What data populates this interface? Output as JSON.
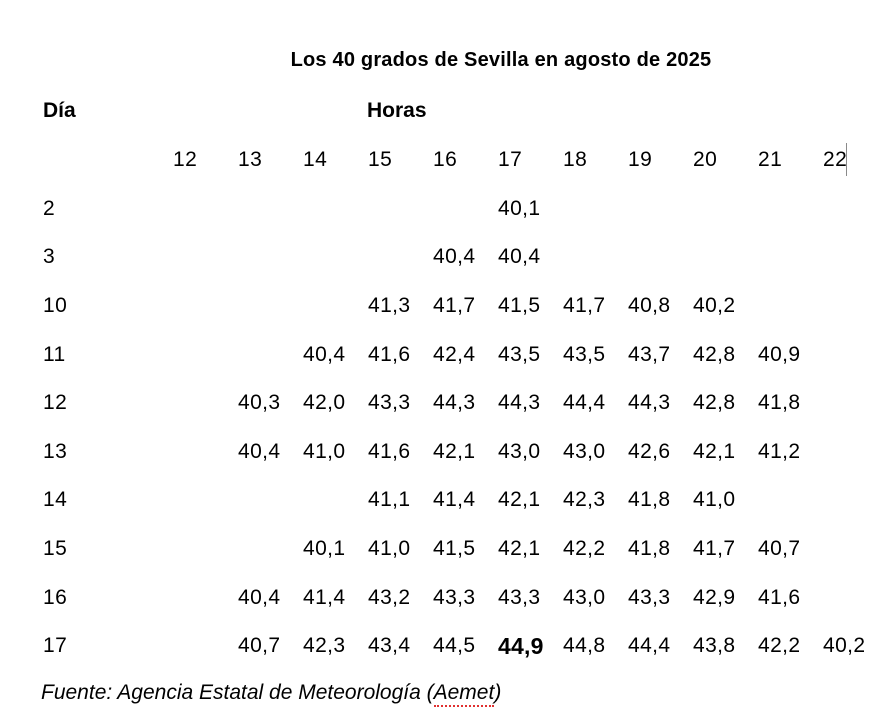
{
  "title": "Los 40 grados de Sevilla en agosto de 2025",
  "table": {
    "day_label": "Día",
    "hours_label": "Horas",
    "hours": [
      "12",
      "13",
      "14",
      "15",
      "16",
      "17",
      "18",
      "19",
      "20",
      "21",
      "22"
    ],
    "rows": [
      {
        "day": "2",
        "values": [
          "",
          "",
          "",
          "",
          "",
          "40,1",
          "",
          "",
          "",
          "",
          ""
        ]
      },
      {
        "day": "3",
        "values": [
          "",
          "",
          "",
          "",
          "40,4",
          "40,4",
          "",
          "",
          "",
          "",
          ""
        ]
      },
      {
        "day": "10",
        "values": [
          "",
          "",
          "",
          "41,3",
          "41,7",
          "41,5",
          "41,7",
          "40,8",
          "40,2",
          "",
          ""
        ]
      },
      {
        "day": "11",
        "values": [
          "",
          "",
          "40,4",
          "41,6",
          "42,4",
          "43,5",
          "43,5",
          "43,7",
          "42,8",
          "40,9",
          ""
        ]
      },
      {
        "day": "12",
        "values": [
          "",
          "40,3",
          "42,0",
          "43,3",
          "44,3",
          "44,3",
          "44,4",
          "44,3",
          "42,8",
          "41,8",
          ""
        ]
      },
      {
        "day": "13",
        "values": [
          "",
          "40,4",
          "41,0",
          "41,6",
          "42,1",
          "43,0",
          "43,0",
          "42,6",
          "42,1",
          "41,2",
          ""
        ]
      },
      {
        "day": "14",
        "values": [
          "",
          "",
          "",
          "41,1",
          "41,4",
          "42,1",
          "42,3",
          "41,8",
          "41,0",
          "",
          ""
        ]
      },
      {
        "day": "15",
        "values": [
          "",
          "",
          "40,1",
          "41,0",
          "41,5",
          "42,1",
          "42,2",
          "41,8",
          "41,7",
          "40,7",
          ""
        ]
      },
      {
        "day": "16",
        "values": [
          "",
          "40,4",
          "41,4",
          "43,2",
          "43,3",
          "43,3",
          "43,0",
          "43,3",
          "42,9",
          "41,6",
          ""
        ]
      },
      {
        "day": "17",
        "values": [
          "",
          "40,7",
          "42,3",
          "43,4",
          "44,5",
          "44,9",
          "44,8",
          "44,4",
          "43,8",
          "42,2",
          "40,2"
        ],
        "bold_index": 5
      }
    ]
  },
  "source": {
    "prefix": "Fuente: Agencia Estatal de Meteorología (",
    "misspelled_word": "Aemet",
    "suffix": ")"
  },
  "colors": {
    "text": "#000000",
    "background": "#ffffff",
    "spellcheck_underline": "#e03030"
  },
  "chart_data": {
    "type": "table",
    "title": "Los 40 grados de Sevilla en agosto de 2025",
    "row_header": "Día",
    "column_group_header": "Horas",
    "columns": [
      12,
      13,
      14,
      15,
      16,
      17,
      18,
      19,
      20,
      21,
      22
    ],
    "rows": [
      {
        "day": 2,
        "values": [
          null,
          null,
          null,
          null,
          null,
          40.1,
          null,
          null,
          null,
          null,
          null
        ]
      },
      {
        "day": 3,
        "values": [
          null,
          null,
          null,
          null,
          40.4,
          40.4,
          null,
          null,
          null,
          null,
          null
        ]
      },
      {
        "day": 10,
        "values": [
          null,
          null,
          null,
          41.3,
          41.7,
          41.5,
          41.7,
          40.8,
          40.2,
          null,
          null
        ]
      },
      {
        "day": 11,
        "values": [
          null,
          null,
          40.4,
          41.6,
          42.4,
          43.5,
          43.5,
          43.7,
          42.8,
          40.9,
          null
        ]
      },
      {
        "day": 12,
        "values": [
          null,
          40.3,
          42.0,
          43.3,
          44.3,
          44.3,
          44.4,
          44.3,
          42.8,
          41.8,
          null
        ]
      },
      {
        "day": 13,
        "values": [
          null,
          40.4,
          41.0,
          41.6,
          42.1,
          43.0,
          43.0,
          42.6,
          42.1,
          41.2,
          null
        ]
      },
      {
        "day": 14,
        "values": [
          null,
          null,
          null,
          41.1,
          41.4,
          42.1,
          42.3,
          41.8,
          41.0,
          null,
          null
        ]
      },
      {
        "day": 15,
        "values": [
          null,
          null,
          40.1,
          41.0,
          41.5,
          42.1,
          42.2,
          41.8,
          41.7,
          40.7,
          null
        ]
      },
      {
        "day": 16,
        "values": [
          null,
          40.4,
          41.4,
          43.2,
          43.3,
          43.3,
          43.0,
          43.3,
          42.9,
          41.6,
          null
        ]
      },
      {
        "day": 17,
        "values": [
          null,
          40.7,
          42.3,
          43.4,
          44.5,
          44.9,
          44.8,
          44.4,
          43.8,
          42.2,
          40.2
        ]
      }
    ],
    "max_value": {
      "day": 17,
      "hour": 17,
      "value": 44.9,
      "emphasis": "bold"
    },
    "source": "Fuente: Agencia Estatal de Meteorología (Aemet)"
  }
}
